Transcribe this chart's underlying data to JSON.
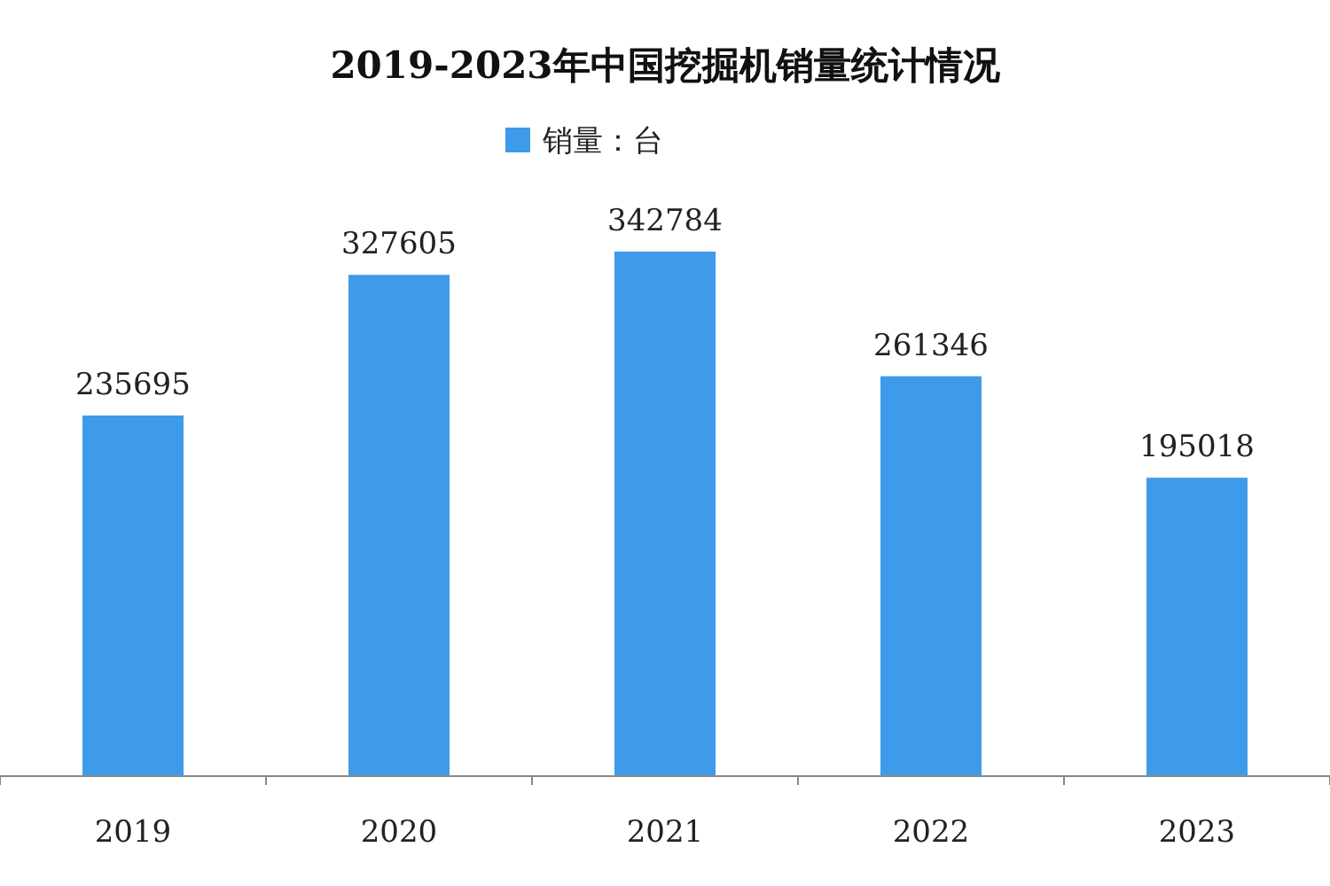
{
  "chart_data": {
    "type": "bar",
    "title": "2019-2023年中国挖掘机销量统计情况",
    "categories": [
      "2019",
      "2020",
      "2021",
      "2022",
      "2023"
    ],
    "series": [
      {
        "name": "销量：台",
        "color": "#3d9be9",
        "values": [
          235695,
          327605,
          342784,
          261346,
          195018
        ]
      }
    ],
    "tick_labels": "x",
    "data_labels": true,
    "legend": "top"
  }
}
